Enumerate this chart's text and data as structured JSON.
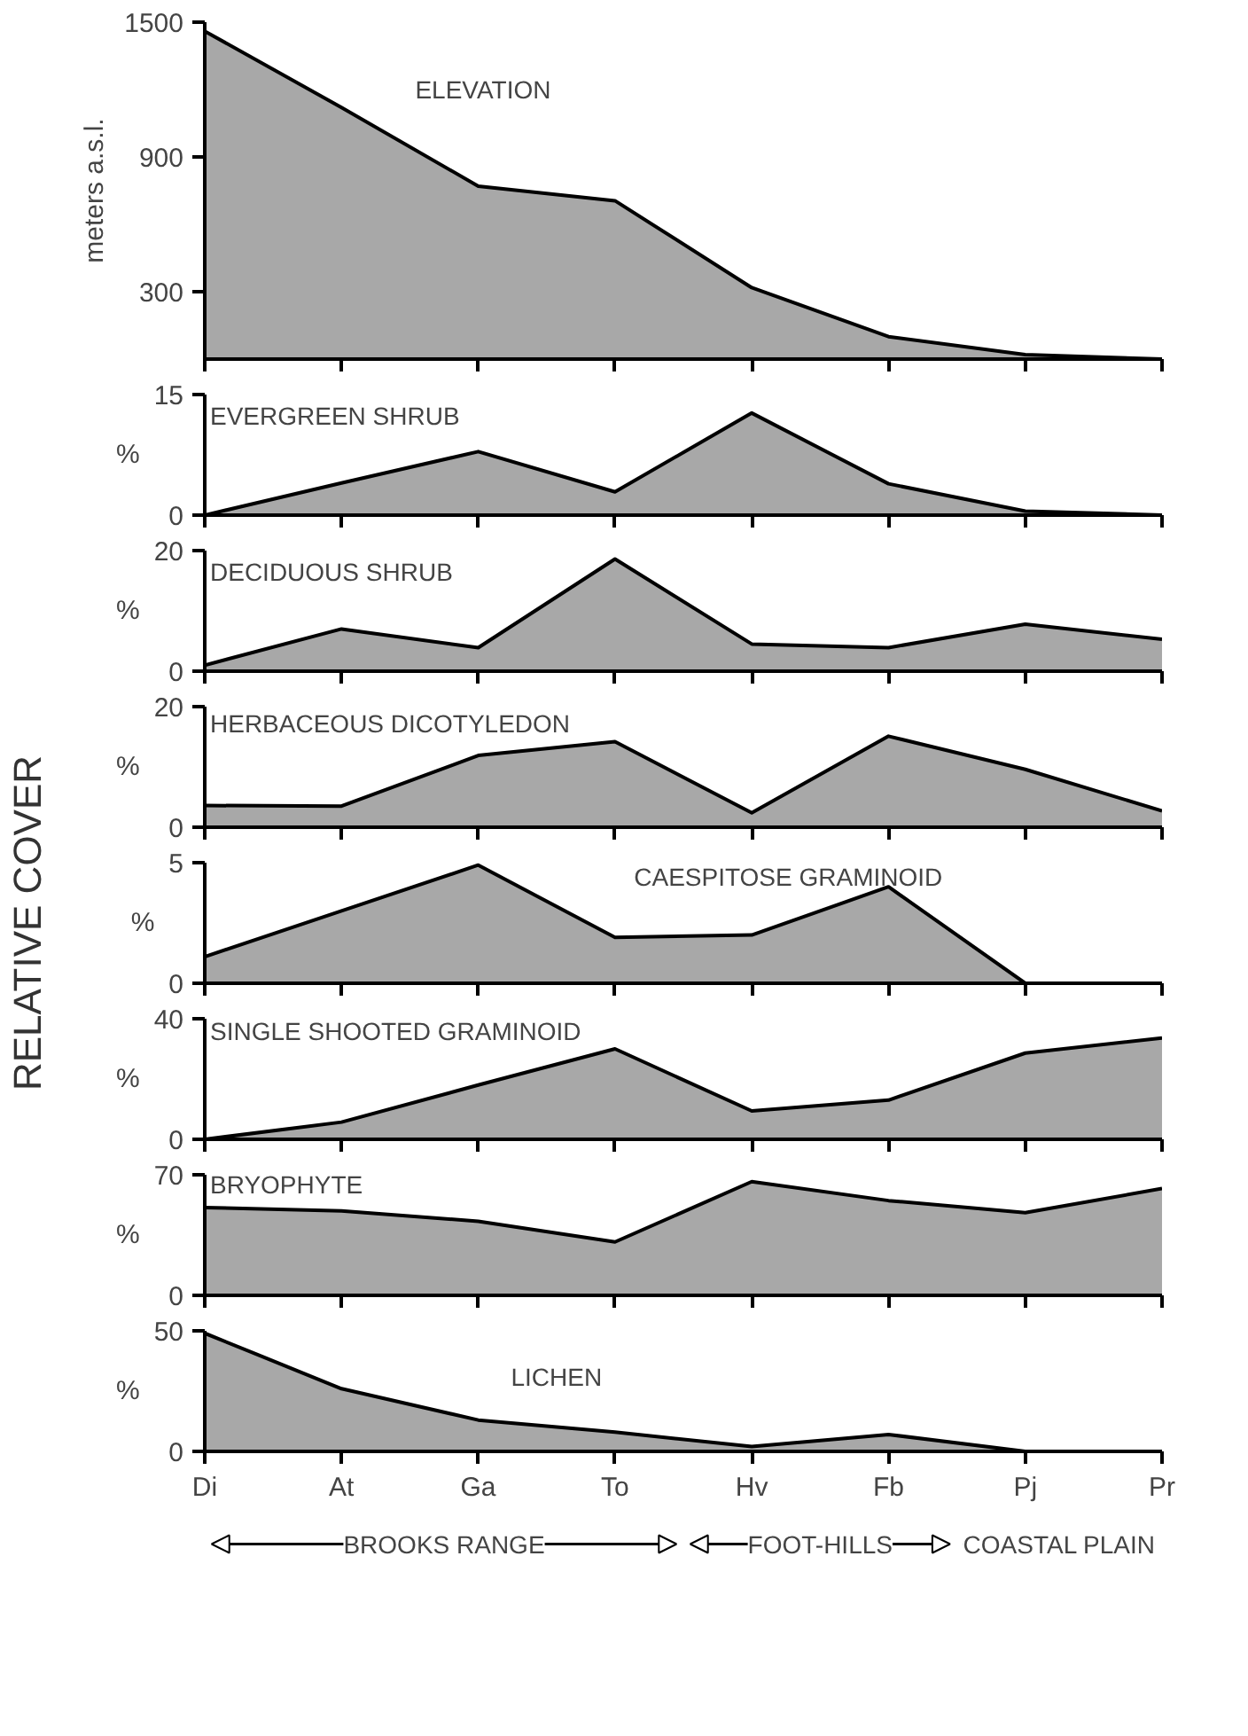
{
  "chart_data": [
    {
      "type": "area",
      "title": "ELEVATION",
      "ylabel": "meters a.s.l.",
      "categories": [
        null,
        null,
        null,
        null,
        null,
        null,
        null,
        null
      ],
      "values": [
        1460,
        1120,
        770,
        705,
        318,
        100,
        20,
        0
      ],
      "color": "#a8a8a8",
      "ylim": [
        0,
        1500
      ],
      "yticks": [
        300,
        900,
        1500
      ],
      "tick_labels": "y"
    },
    {
      "type": "area",
      "title": "EVERGREEN SHRUB",
      "ylabel": "%",
      "categories": [
        null,
        null,
        null,
        null,
        null,
        null,
        null,
        null
      ],
      "values": [
        0,
        4,
        7.9,
        2.9,
        12.7,
        3.9,
        0.5,
        0
      ],
      "color": "#a8a8a8",
      "ylim": [
        0,
        15
      ],
      "yticks": [
        0,
        15
      ],
      "tick_labels": "y"
    },
    {
      "type": "area",
      "title": "DECIDUOUS SHRUB",
      "ylabel": "%",
      "categories": [
        null,
        null,
        null,
        null,
        null,
        null,
        null,
        null
      ],
      "values": [
        1,
        7,
        3.9,
        18.6,
        4.5,
        3.9,
        7.8,
        5.3
      ],
      "color": "#a8a8a8",
      "ylim": [
        0,
        20
      ],
      "yticks": [
        0,
        20
      ],
      "tick_labels": "y"
    },
    {
      "type": "area",
      "title": "HERBACEOUS DICOTYLEDON",
      "ylabel": "%",
      "categories": [
        null,
        null,
        null,
        null,
        null,
        null,
        null,
        null
      ],
      "values": [
        3.6,
        3.5,
        11.9,
        14.2,
        2.4,
        15.1,
        9.6,
        2.7
      ],
      "color": "#a8a8a8",
      "ylim": [
        0,
        20
      ],
      "yticks": [
        0,
        20
      ],
      "tick_labels": "y"
    },
    {
      "type": "area",
      "title": "CAESPITOSE GRAMINOID",
      "ylabel": "%",
      "categories": [
        null,
        null,
        null,
        null,
        null,
        null,
        null,
        null
      ],
      "values": [
        1.1,
        3.0,
        4.9,
        1.9,
        2.0,
        4.0,
        0,
        0
      ],
      "color": "#a8a8a8",
      "ylim": [
        0,
        5
      ],
      "yticks": [
        0,
        5
      ],
      "tick_labels": "y",
      "annotations": [
        "RELATIVE COVER"
      ]
    },
    {
      "type": "area",
      "title": "SINGLE SHOOTED GRAMINOID",
      "ylabel": "%",
      "categories": [
        null,
        null,
        null,
        null,
        null,
        null,
        null,
        null
      ],
      "values": [
        0,
        5.7,
        18,
        30,
        9.4,
        13,
        28.6,
        33.6
      ],
      "color": "#a8a8a8",
      "ylim": [
        0,
        40
      ],
      "yticks": [
        0,
        40
      ],
      "tick_labels": "y"
    },
    {
      "type": "area",
      "title": "BRYOPHYTE",
      "ylabel": "%",
      "categories": [
        null,
        null,
        null,
        null,
        null,
        null,
        null,
        null
      ],
      "values": [
        51,
        49,
        43,
        31,
        66,
        55,
        48,
        62
      ],
      "color": "#a8a8a8",
      "ylim": [
        0,
        70
      ],
      "yticks": [
        0,
        70
      ],
      "tick_labels": "y"
    },
    {
      "type": "area",
      "title": "LICHEN",
      "ylabel": "%",
      "categories": [
        "Di",
        "At",
        "Ga",
        "To",
        "Hv",
        "Fb",
        "Pj",
        "Pr"
      ],
      "values": [
        49,
        26,
        13,
        8,
        2,
        7,
        0,
        0
      ],
      "color": "#a8a8a8",
      "ylim": [
        0,
        50
      ],
      "yticks": [
        0,
        50
      ],
      "annotations": [
        "BROOKS RANGE",
        "FOOT-HILLS",
        "COASTAL PLAIN"
      ]
    }
  ]
}
